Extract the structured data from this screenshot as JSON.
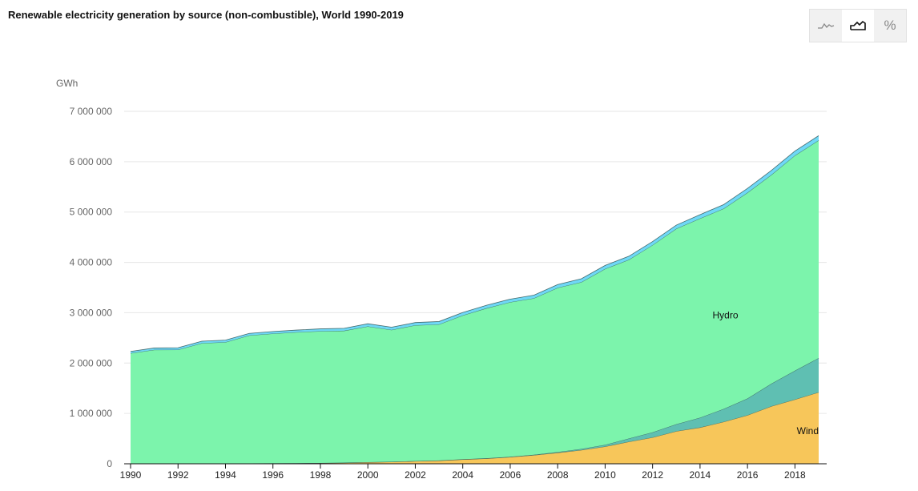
{
  "toolbar": {
    "buttons": [
      {
        "icon": "line-chart-icon",
        "active": false
      },
      {
        "icon": "area-chart-icon",
        "active": true
      },
      {
        "icon": "percent-icon",
        "label": "%",
        "active": false
      }
    ]
  },
  "chart_data": {
    "type": "area",
    "stacked": true,
    "title": "Renewable electricity generation by source (non-combustible), World 1990-2019",
    "ylabel": "GWh",
    "xlabel": "",
    "ylim": [
      0,
      7000000
    ],
    "xlim": [
      1990,
      2019
    ],
    "grid": true,
    "y_ticks": [
      "0",
      "1 000 000",
      "2 000 000",
      "3 000 000",
      "4 000 000",
      "5 000 000",
      "6 000 000",
      "7 000 000"
    ],
    "x_ticks": [
      "1990",
      "1992",
      "1994",
      "1996",
      "1998",
      "2000",
      "2002",
      "2004",
      "2006",
      "2008",
      "2010",
      "2012",
      "2014",
      "2016",
      "2018"
    ],
    "x": [
      1990,
      1991,
      1992,
      1993,
      1994,
      1995,
      1996,
      1997,
      1998,
      1999,
      2000,
      2001,
      2002,
      2003,
      2004,
      2005,
      2006,
      2007,
      2008,
      2009,
      2010,
      2011,
      2012,
      2013,
      2014,
      2015,
      2016,
      2017,
      2018,
      2019
    ],
    "series": [
      {
        "name": "Wind",
        "color": "#f7c65a",
        "values": [
          3900,
          4000,
          5000,
          6000,
          7000,
          8000,
          10000,
          12000,
          16000,
          21000,
          31000,
          38000,
          52000,
          63000,
          85000,
          104000,
          133000,
          171000,
          220000,
          273000,
          342000,
          437000,
          524000,
          646000,
          721000,
          833000,
          964000,
          1141000,
          1277000,
          1420000
        ]
      },
      {
        "color": "#5fbfb2",
        "values": [
          400,
          500,
          500,
          500,
          600,
          600,
          700,
          800,
          900,
          1000,
          1200,
          1500,
          2000,
          3000,
          3600,
          4400,
          6000,
          7500,
          12500,
          21000,
          34000,
          65000,
          100000,
          140000,
          194000,
          257000,
          332000,
          447000,
          572000,
          680000
        ]
      },
      {
        "name": "Hydro",
        "color": "#7cf4ac",
        "values": [
          2191000,
          2258000,
          2260000,
          2388000,
          2407000,
          2541000,
          2574000,
          2601000,
          2617000,
          2620000,
          2697000,
          2620000,
          2697000,
          2703000,
          2859000,
          2981000,
          3071000,
          3108000,
          3263000,
          3314000,
          3495000,
          3551000,
          3720000,
          3883000,
          3957000,
          3979000,
          4089000,
          4149000,
          4274000,
          4325000
        ]
      },
      {
        "color": "#6fd8f6",
        "values": [
          36000,
          37000,
          39000,
          40000,
          41000,
          40000,
          42000,
          42000,
          46000,
          49000,
          52000,
          53000,
          54000,
          56000,
          57000,
          58000,
          60000,
          62000,
          64000,
          67000,
          68000,
          69000,
          70000,
          71000,
          76000,
          80000,
          84000,
          86000,
          89000,
          92000
        ]
      }
    ],
    "annotations": [
      {
        "text": "Hydro",
        "x": 2015,
        "y": 2950000
      },
      {
        "text": "Wind",
        "x": 2019,
        "y": 650000
      }
    ]
  }
}
